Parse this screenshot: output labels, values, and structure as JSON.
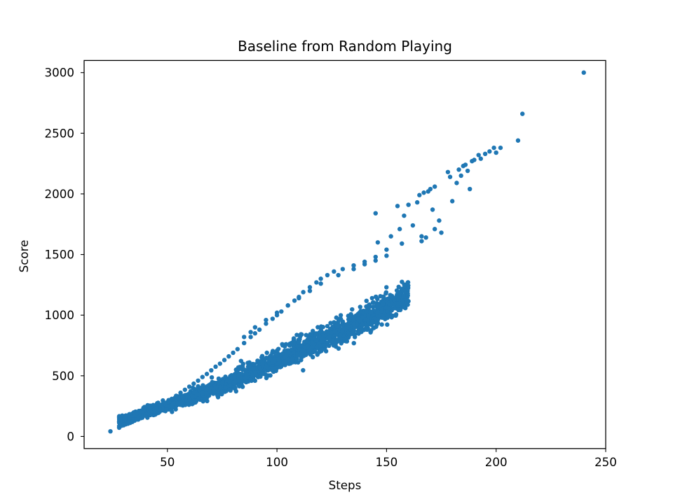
{
  "chart_data": {
    "type": "scatter",
    "title": "Baseline from Random Playing",
    "xlabel": "Steps",
    "ylabel": "Score",
    "xlim": [
      12,
      250
    ],
    "ylim": [
      -100,
      3100
    ],
    "xticks": [
      50,
      100,
      150,
      200,
      250
    ],
    "yticks": [
      0,
      500,
      1000,
      1500,
      2000,
      2500,
      3000
    ],
    "grid": false,
    "legend": "none",
    "marker_color": "#1f77b4",
    "trend": {
      "description": "dense band following score ≈ 0.0192·steps² + 4.16·steps, width grows with steps",
      "x_range": [
        28,
        160
      ]
    },
    "series": [
      {
        "points": [
          [
            24,
            42
          ],
          [
            28,
            85
          ],
          [
            28,
            72
          ],
          [
            29,
            88
          ],
          [
            30,
            92
          ],
          [
            31,
            100
          ],
          [
            32,
            105
          ],
          [
            33,
            112
          ],
          [
            34,
            120
          ],
          [
            35,
            130
          ],
          [
            36,
            140
          ],
          [
            37,
            150
          ],
          [
            38,
            160
          ],
          [
            39,
            170
          ],
          [
            40,
            180
          ],
          [
            41,
            192
          ],
          [
            42,
            200
          ],
          [
            43,
            210
          ],
          [
            44,
            222
          ],
          [
            45,
            232
          ],
          [
            47,
            255
          ],
          [
            49,
            275
          ],
          [
            52,
            310
          ],
          [
            54,
            335
          ],
          [
            56,
            360
          ],
          [
            58,
            385
          ],
          [
            60,
            410
          ],
          [
            62,
            435
          ],
          [
            64,
            460
          ],
          [
            66,
            490
          ],
          [
            68,
            515
          ],
          [
            70,
            545
          ],
          [
            72,
            575
          ],
          [
            74,
            600
          ],
          [
            76,
            630
          ],
          [
            78,
            660
          ],
          [
            80,
            690
          ],
          [
            82,
            720
          ],
          [
            85,
            770
          ],
          [
            88,
            820
          ],
          [
            90,
            850
          ],
          [
            92,
            880
          ],
          [
            95,
            930
          ],
          [
            98,
            970
          ],
          [
            100,
            1000
          ],
          [
            102,
            1030
          ],
          [
            105,
            1080
          ],
          [
            108,
            1120
          ],
          [
            110,
            1150
          ],
          [
            112,
            1190
          ],
          [
            115,
            1230
          ],
          [
            118,
            1270
          ],
          [
            120,
            1300
          ],
          [
            123,
            1330
          ],
          [
            126,
            1360
          ],
          [
            130,
            1380
          ],
          [
            135,
            1410
          ],
          [
            140,
            1420
          ],
          [
            145,
            1450
          ],
          [
            150,
            1490
          ],
          [
            85,
            820
          ],
          [
            88,
            860
          ],
          [
            90,
            900
          ],
          [
            95,
            960
          ],
          [
            100,
            1020
          ],
          [
            105,
            1080
          ],
          [
            110,
            1140
          ],
          [
            115,
            1200
          ],
          [
            120,
            1260
          ],
          [
            128,
            1330
          ],
          [
            135,
            1380
          ],
          [
            140,
            1440
          ],
          [
            145,
            1480
          ],
          [
            145,
            1840
          ],
          [
            146,
            1600
          ],
          [
            150,
            1540
          ],
          [
            152,
            1650
          ],
          [
            155,
            1900
          ],
          [
            156,
            1710
          ],
          [
            157,
            1590
          ],
          [
            158,
            1820
          ],
          [
            160,
            1910
          ],
          [
            162,
            1740
          ],
          [
            164,
            1930
          ],
          [
            165,
            1990
          ],
          [
            166,
            1650
          ],
          [
            166,
            1610
          ],
          [
            167,
            2010
          ],
          [
            168,
            1640
          ],
          [
            169,
            2020
          ],
          [
            170,
            2040
          ],
          [
            171,
            1870
          ],
          [
            172,
            2060
          ],
          [
            172,
            1710
          ],
          [
            174,
            1780
          ],
          [
            175,
            1680
          ],
          [
            178,
            2180
          ],
          [
            179,
            2140
          ],
          [
            180,
            1940
          ],
          [
            182,
            2090
          ],
          [
            183,
            2200
          ],
          [
            184,
            2150
          ],
          [
            185,
            2230
          ],
          [
            186,
            2240
          ],
          [
            187,
            2190
          ],
          [
            188,
            2040
          ],
          [
            189,
            2270
          ],
          [
            190,
            2280
          ],
          [
            192,
            2320
          ],
          [
            193,
            2290
          ],
          [
            195,
            2330
          ],
          [
            197,
            2350
          ],
          [
            199,
            2380
          ],
          [
            200,
            2340
          ],
          [
            202,
            2380
          ],
          [
            210,
            2440
          ],
          [
            212,
            2660
          ],
          [
            240,
            3000
          ]
        ]
      }
    ]
  }
}
